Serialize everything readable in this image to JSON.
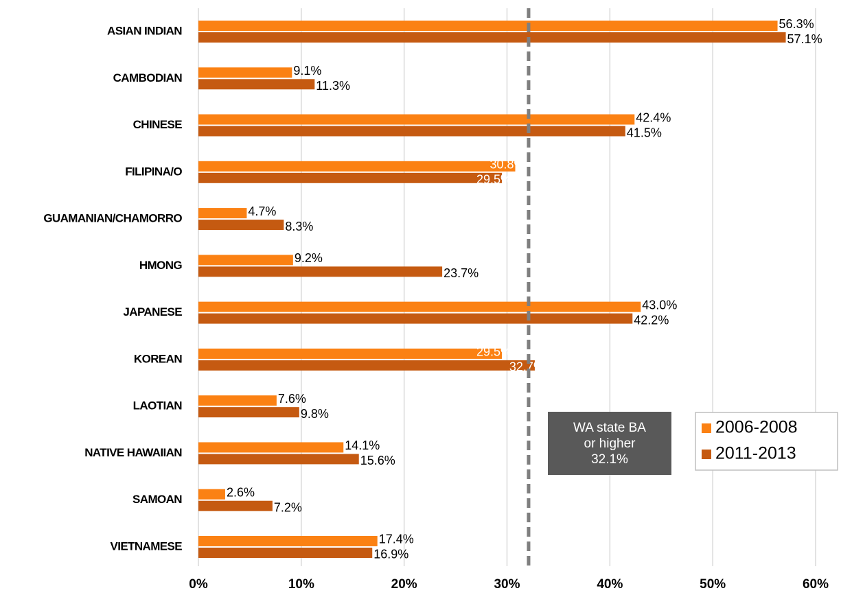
{
  "chart_data": {
    "type": "bar",
    "orientation": "horizontal",
    "categories": [
      "ASIAN INDIAN",
      "CAMBODIAN",
      "CHINESE",
      "FILIPINA/O",
      "GUAMANIAN/CHAMORRO",
      "HMONG",
      "JAPANESE",
      "KOREAN",
      "LAOTIAN",
      "NATIVE HAWAIIAN",
      "SAMOAN",
      "VIETNAMESE"
    ],
    "series": [
      {
        "name": "2006-2008",
        "color": "#fb8113",
        "values": [
          56.3,
          9.1,
          42.4,
          30.8,
          4.7,
          9.2,
          43.0,
          29.5,
          7.6,
          14.1,
          2.6,
          17.4
        ],
        "value_labels": [
          "56.3%",
          "9.1%",
          "42.4%",
          "30.8%",
          "4.7%",
          "9.2%",
          "43.0%",
          "29.5%",
          "7.6%",
          "14.1%",
          "2.6%",
          "17.4%"
        ]
      },
      {
        "name": "2011-2013",
        "color": "#c55a11",
        "values": [
          57.1,
          11.3,
          41.5,
          29.5,
          8.3,
          23.7,
          42.2,
          32.7,
          9.8,
          15.6,
          7.2,
          16.9
        ],
        "value_labels": [
          "57.1%",
          "11.3%",
          "41.5%",
          "29.5%",
          "8.3%",
          "23.7%",
          "42.2%",
          "32.7%",
          "9.8%",
          "15.6%",
          "7.2%",
          "16.9%"
        ]
      }
    ],
    "xlim": [
      0,
      60
    ],
    "xticks": [
      {
        "value": 0,
        "label": "0%"
      },
      {
        "value": 10,
        "label": "10%"
      },
      {
        "value": 20,
        "label": "20%"
      },
      {
        "value": 30,
        "label": "30%"
      },
      {
        "value": 40,
        "label": "40%"
      },
      {
        "value": 50,
        "label": "50%"
      },
      {
        "value": 60,
        "label": "60%"
      }
    ],
    "grid": true,
    "legend": "right",
    "reference_line": {
      "value": 32.1,
      "color": "#7f7f7f",
      "label": [
        "WA state BA",
        "or higher",
        "32.1%"
      ]
    }
  }
}
